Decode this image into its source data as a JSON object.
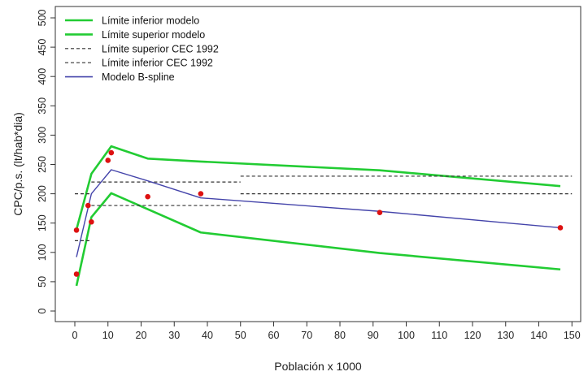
{
  "chart_data": {
    "type": "line",
    "xlabel": "Población x 1000",
    "ylabel": "CPC/p.s. (lt/hab*dia)",
    "xlim": [
      0,
      150
    ],
    "ylim": [
      0,
      500
    ],
    "x_ticks": [
      0,
      10,
      20,
      30,
      40,
      50,
      60,
      70,
      80,
      90,
      100,
      110,
      120,
      130,
      140,
      150
    ],
    "y_ticks": [
      0,
      50,
      100,
      150,
      200,
      250,
      300,
      350,
      400,
      450,
      500
    ],
    "legend_position": "top-left",
    "grid": false,
    "series": [
      {
        "name": "Límite inferior modelo",
        "color": "#22cc33",
        "style": "solid",
        "x": [
          0.5,
          5,
          11,
          38,
          92,
          146.5
        ],
        "y": [
          43,
          160,
          201,
          134,
          99,
          71
        ]
      },
      {
        "name": "Límite superior modelo",
        "color": "#22cc33",
        "style": "solid",
        "x": [
          0.5,
          5,
          11,
          22,
          38,
          92,
          146.5
        ],
        "y": [
          139,
          234,
          281,
          260,
          255,
          240,
          213
        ]
      },
      {
        "name": "Límite superior CEC 1992",
        "color": "#333333",
        "style": "dashed",
        "segments": [
          {
            "x": [
              0,
              5
            ],
            "y": [
              200,
              200
            ]
          },
          {
            "x": [
              5,
              50
            ],
            "y": [
              220,
              220
            ]
          },
          {
            "x": [
              50,
              150
            ],
            "y": [
              230,
              230
            ]
          }
        ]
      },
      {
        "name": "Límite inferior CEC 1992",
        "color": "#333333",
        "style": "dashed",
        "segments": [
          {
            "x": [
              0,
              5
            ],
            "y": [
              120,
              120
            ]
          },
          {
            "x": [
              5,
              50
            ],
            "y": [
              180,
              180
            ]
          },
          {
            "x": [
              50,
              150
            ],
            "y": [
              200,
              200
            ]
          }
        ]
      },
      {
        "name": "Modelo B-spline",
        "color": "#4444aa",
        "style": "solid",
        "x": [
          0.5,
          5,
          11,
          22,
          38,
          92,
          146.5
        ],
        "y": [
          92,
          200,
          241,
          222,
          193,
          170,
          142
        ]
      }
    ],
    "points": {
      "color": "#dd1111",
      "x": [
        0.5,
        0.5,
        4,
        5,
        10,
        11,
        22,
        38,
        92,
        146.5
      ],
      "y": [
        63,
        138,
        180,
        152,
        257,
        270,
        195,
        200,
        168,
        142
      ]
    }
  }
}
